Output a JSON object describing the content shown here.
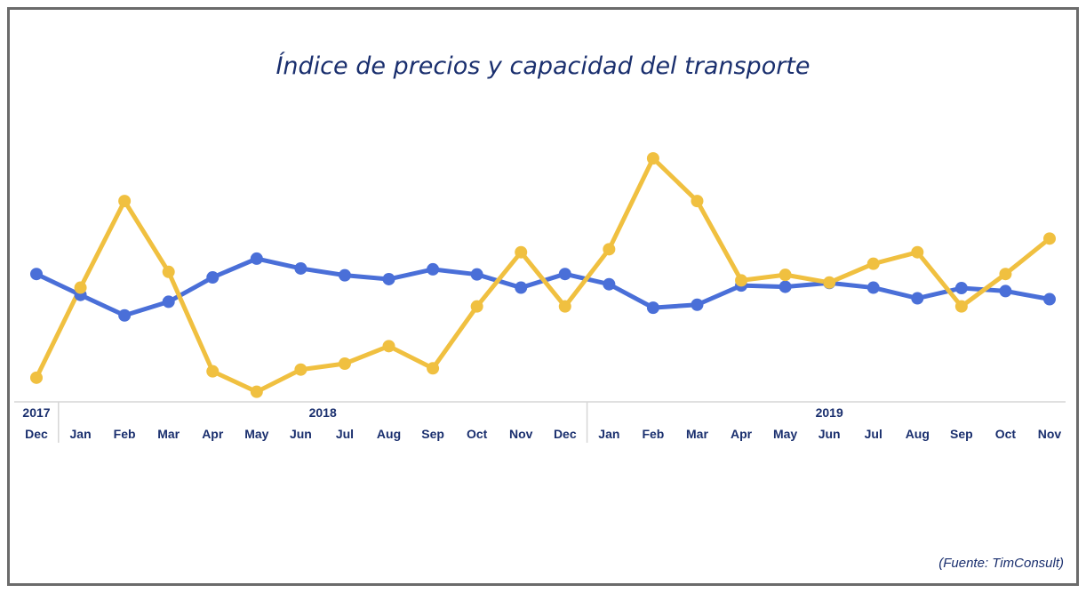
{
  "chart_data": {
    "type": "line",
    "title": "Índice de precios y capacidad del transporte",
    "source": "(Fuente: TimConsult)",
    "categories": [
      "Dec",
      "Jan",
      "Feb",
      "Mar",
      "Apr",
      "May",
      "Jun",
      "Jul",
      "Aug",
      "Sep",
      "Oct",
      "Nov",
      "Dec",
      "Jan",
      "Feb",
      "Mar",
      "Apr",
      "May",
      "Jun",
      "Jul",
      "Aug",
      "Sep",
      "Oct",
      "Nov"
    ],
    "year_groups": [
      {
        "label": "2017",
        "start": 0,
        "end": 0
      },
      {
        "label": "2018",
        "start": 1,
        "end": 12
      },
      {
        "label": "2019",
        "start": 13,
        "end": 23
      }
    ],
    "series": [
      {
        "color": "#4a6fd8",
        "values": [
          48.5,
          43.6,
          38.8,
          42.0,
          47.7,
          52.1,
          49.8,
          48.2,
          47.3,
          49.6,
          48.4,
          45.3,
          48.5,
          46.1,
          40.6,
          41.3,
          45.8,
          45.5,
          46.4,
          45.3,
          42.8,
          45.2,
          44.5,
          42.6
        ]
      },
      {
        "color": "#f0c040",
        "values": [
          24.2,
          45.3,
          65.6,
          49.0,
          25.7,
          20.9,
          26.1,
          27.5,
          31.6,
          26.4,
          40.9,
          53.6,
          40.9,
          54.3,
          75.6,
          65.6,
          47.0,
          48.3,
          46.5,
          50.9,
          53.6,
          40.9,
          48.5,
          56.8
        ]
      }
    ],
    "ylim": [
      0,
      100
    ],
    "grid": false
  }
}
